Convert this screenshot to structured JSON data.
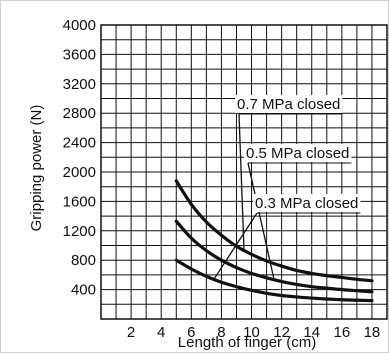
{
  "chart_data": {
    "type": "line",
    "title": "",
    "xlabel": "Length of finger (cm)",
    "ylabel": "Gripping power (N)",
    "xlim": [
      0,
      19
    ],
    "ylim": [
      0,
      4000
    ],
    "xticks": [
      2,
      4,
      6,
      8,
      10,
      12,
      14,
      16,
      18
    ],
    "yticks": [
      400,
      800,
      1200,
      1600,
      2000,
      2400,
      2800,
      3200,
      3600,
      4000
    ],
    "grid": true,
    "series": [
      {
        "name": "0.7 MPa closed",
        "x": [
          5,
          6,
          7,
          8,
          9,
          10,
          11,
          12,
          13,
          14,
          15,
          16,
          17,
          18
        ],
        "y": [
          1880,
          1560,
          1320,
          1140,
          990,
          880,
          790,
          720,
          660,
          620,
          590,
          565,
          540,
          520
        ]
      },
      {
        "name": "0.5 MPa closed",
        "x": [
          5,
          6,
          7,
          8,
          9,
          10,
          11,
          12,
          13,
          14,
          15,
          16,
          17,
          18
        ],
        "y": [
          1330,
          1100,
          930,
          800,
          700,
          620,
          560,
          510,
          470,
          440,
          420,
          400,
          385,
          370
        ]
      },
      {
        "name": "0.3 MPa closed",
        "x": [
          5,
          6,
          7,
          8,
          9,
          10,
          11,
          12,
          13,
          14,
          15,
          16,
          17,
          18
        ],
        "y": [
          800,
          680,
          580,
          500,
          440,
          390,
          350,
          320,
          300,
          285,
          272,
          262,
          255,
          250
        ]
      }
    ],
    "annotations": [
      {
        "text": "0.7 MPa closed",
        "series": 0,
        "point_x": 9.5
      },
      {
        "text": "0.5 MPa closed",
        "series": 1,
        "point_x": 11.5
      },
      {
        "text": "0.3 MPa closed",
        "series": 2,
        "point_x": 7.5
      }
    ]
  }
}
